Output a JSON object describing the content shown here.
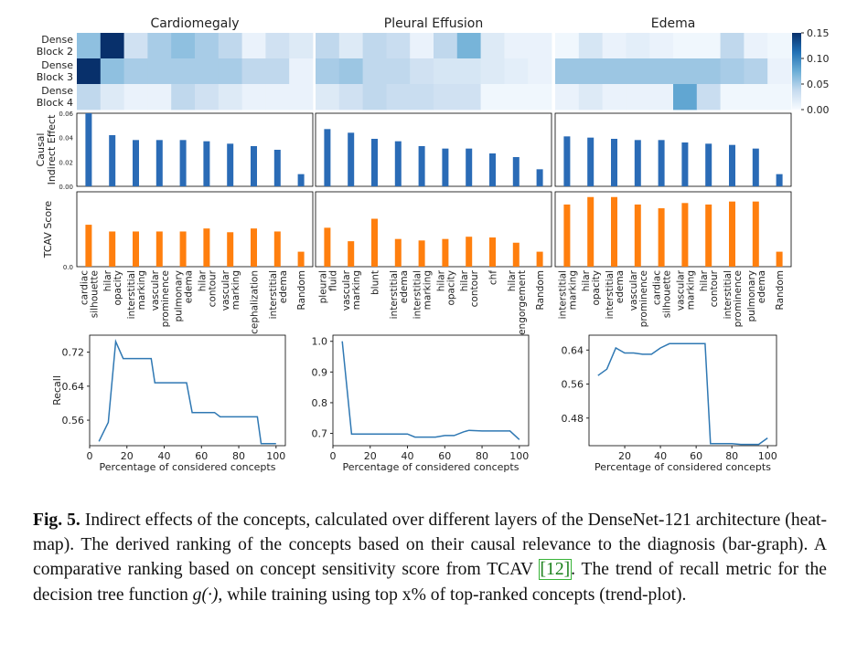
{
  "figure": {
    "panels": [
      {
        "title": "Cardiomegaly",
        "bar_labels": [
          "cardiac silhouette",
          "hilar opacity",
          "interstitial marking",
          "vascular prominence",
          "pulmonary edema",
          "hilar contour",
          "vascular marking",
          "cephalization",
          "interstitial edema",
          "Random"
        ]
      },
      {
        "title": "Pleural Effusion",
        "bar_labels": [
          "pleural fluid",
          "vascular marking",
          "blunt",
          "interstitial edema",
          "interstitial marking",
          "hilar opacity",
          "hilar contour",
          "chf",
          "hilar engorgement",
          "Random"
        ]
      },
      {
        "title": "Edema",
        "bar_labels": [
          "interstitial marking",
          "hilar opacity",
          "interstitial edema",
          "vascular prominence",
          "cardiac silhouette",
          "vascular marking",
          "hilar contour",
          "interstitial prominence",
          "pulmonary edema",
          "Random"
        ]
      }
    ],
    "row_labels": [
      [
        "Dense",
        "Block 2"
      ],
      [
        "Dense",
        "Block 3"
      ],
      [
        "Dense",
        "Block 4"
      ]
    ],
    "colorbar_ticks": [
      "0.15",
      "0.10",
      "0.05",
      "0.00"
    ],
    "causal_ylabel": [
      "Causal",
      "Indirect Effect"
    ],
    "causal_yticks": [
      "0.06",
      "0.04",
      "0.02",
      "0.00"
    ],
    "tcav_ylabel": "TCAV Score",
    "tcav_yticks": [
      "0.0"
    ],
    "recall_ylabel": "Recall",
    "recall_xlabel": "Percentage of considered concepts",
    "colors": {
      "causal_bar": "#2a6bb6",
      "tcav_bar": "#ff7f0e",
      "line": "#2f78b3",
      "heat_high": "#08306b",
      "heat_low": "#f7fbff"
    }
  },
  "chart_data": [
    {
      "type": "heatmap",
      "title": "Cardiomegaly",
      "rows": [
        "Dense Block 2",
        "Dense Block 3",
        "Dense Block 4"
      ],
      "columns": [
        "cardiac silhouette",
        "hilar opacity",
        "interstitial marking",
        "vascular prominence",
        "pulmonary edema",
        "hilar contour",
        "vascular marking",
        "cephalization",
        "interstitial edema",
        "Random"
      ],
      "values": [
        [
          0.06,
          0.15,
          0.03,
          0.05,
          0.06,
          0.05,
          0.04,
          0.01,
          0.03,
          0.02
        ],
        [
          0.15,
          0.06,
          0.05,
          0.05,
          0.05,
          0.05,
          0.05,
          0.04,
          0.04,
          0.01
        ],
        [
          0.04,
          0.02,
          0.01,
          0.01,
          0.04,
          0.03,
          0.02,
          0.01,
          0.01,
          0.01
        ]
      ],
      "vmin": 0.0,
      "vmax": 0.15
    },
    {
      "type": "heatmap",
      "title": "Pleural Effusion",
      "rows": [
        "Dense Block 2",
        "Dense Block 3",
        "Dense Block 4"
      ],
      "columns": [
        "pleural fluid",
        "vascular marking",
        "blunt",
        "interstitial edema",
        "interstitial marking",
        "hilar opacity",
        "hilar contour",
        "chf",
        "hilar engorgement",
        "Random"
      ],
      "values": [
        [
          0.04,
          0.02,
          0.04,
          0.035,
          0.01,
          0.04,
          0.07,
          0.02,
          0.01,
          0.01
        ],
        [
          0.05,
          0.055,
          0.04,
          0.04,
          0.03,
          0.025,
          0.025,
          0.02,
          0.015,
          0.01
        ],
        [
          0.02,
          0.03,
          0.04,
          0.035,
          0.035,
          0.03,
          0.03,
          0.005,
          0.005,
          0.005
        ]
      ],
      "vmin": 0.0,
      "vmax": 0.15
    },
    {
      "type": "heatmap",
      "title": "Edema",
      "rows": [
        "Dense Block 2",
        "Dense Block 3",
        "Dense Block 4"
      ],
      "columns": [
        "interstitial marking",
        "hilar opacity",
        "interstitial edema",
        "vascular prominence",
        "cardiac silhouette",
        "vascular marking",
        "hilar contour",
        "interstitial prominence",
        "pulmonary edema",
        "Random"
      ],
      "values": [
        [
          0.005,
          0.025,
          0.01,
          0.015,
          0.01,
          0.005,
          0.005,
          0.04,
          0.01,
          0.005
        ],
        [
          0.055,
          0.055,
          0.055,
          0.055,
          0.055,
          0.055,
          0.055,
          0.05,
          0.045,
          0.01
        ],
        [
          0.01,
          0.02,
          0.01,
          0.01,
          0.01,
          0.08,
          0.035,
          0.005,
          0.005,
          0.005
        ]
      ],
      "vmin": 0.0,
      "vmax": 0.15
    },
    {
      "type": "bar",
      "title": "Cardiomegaly",
      "ylabel": "Causal Indirect Effect",
      "ylim": [
        0,
        0.06
      ],
      "categories": [
        "cardiac silhouette",
        "hilar opacity",
        "interstitial marking",
        "vascular prominence",
        "pulmonary edema",
        "hilar contour",
        "vascular marking",
        "cephalization",
        "interstitial edema",
        "Random"
      ],
      "values": [
        0.06,
        0.042,
        0.038,
        0.038,
        0.038,
        0.037,
        0.035,
        0.033,
        0.03,
        0.01
      ]
    },
    {
      "type": "bar",
      "title": "Pleural Effusion",
      "ylabel": "Causal Indirect Effect",
      "ylim": [
        0,
        0.06
      ],
      "categories": [
        "pleural fluid",
        "vascular marking",
        "blunt",
        "interstitial edema",
        "interstitial marking",
        "hilar opacity",
        "hilar contour",
        "chf",
        "hilar engorgement",
        "Random"
      ],
      "values": [
        0.047,
        0.044,
        0.039,
        0.037,
        0.033,
        0.031,
        0.031,
        0.027,
        0.024,
        0.014
      ]
    },
    {
      "type": "bar",
      "title": "Edema",
      "ylabel": "Causal Indirect Effect",
      "ylim": [
        0,
        0.06
      ],
      "categories": [
        "interstitial marking",
        "hilar opacity",
        "interstitial edema",
        "vascular prominence",
        "cardiac silhouette",
        "vascular marking",
        "hilar contour",
        "interstitial prominence",
        "pulmonary edema",
        "Random"
      ],
      "values": [
        0.041,
        0.04,
        0.039,
        0.038,
        0.038,
        0.036,
        0.035,
        0.034,
        0.031,
        0.01
      ]
    },
    {
      "type": "bar",
      "title": "Cardiomegaly",
      "ylabel": "TCAV Score",
      "categories": [
        "cardiac silhouette",
        "hilar opacity",
        "interstitial marking",
        "vascular prominence",
        "pulmonary edema",
        "hilar contour",
        "vascular marking",
        "cephalization",
        "interstitial edema",
        "Random"
      ],
      "values": [
        0.56,
        0.47,
        0.47,
        0.47,
        0.47,
        0.51,
        0.46,
        0.51,
        0.47,
        0.2
      ],
      "ymax": 1.0
    },
    {
      "type": "bar",
      "title": "Pleural Effusion",
      "ylabel": "TCAV Score",
      "categories": [
        "pleural fluid",
        "vascular marking",
        "blunt",
        "interstitial edema",
        "interstitial marking",
        "hilar opacity",
        "hilar contour",
        "chf",
        "hilar engorgement",
        "Random"
      ],
      "values": [
        0.52,
        0.34,
        0.64,
        0.37,
        0.35,
        0.37,
        0.4,
        0.39,
        0.32,
        0.2
      ],
      "ymax": 1.0
    },
    {
      "type": "bar",
      "title": "Edema",
      "ylabel": "TCAV Score",
      "categories": [
        "interstitial marking",
        "hilar opacity",
        "interstitial edema",
        "vascular prominence",
        "cardiac silhouette",
        "vascular marking",
        "hilar contour",
        "interstitial prominence",
        "pulmonary edema",
        "Random"
      ],
      "values": [
        0.83,
        0.93,
        0.93,
        0.83,
        0.78,
        0.85,
        0.83,
        0.87,
        0.87,
        0.2
      ],
      "ymax": 1.0
    },
    {
      "type": "line",
      "title": "Cardiomegaly",
      "xlabel": "Percentage of considered concepts",
      "ylabel": "Recall",
      "xlim": [
        0,
        105
      ],
      "ylim": [
        0.5,
        0.76
      ],
      "xticks": [
        0,
        20,
        40,
        60,
        80,
        100
      ],
      "yticks": [
        0.56,
        0.64,
        0.72
      ],
      "x": [
        5,
        10,
        14,
        18,
        27,
        33,
        35,
        44,
        52,
        55,
        60,
        67,
        70,
        80,
        90,
        92,
        100
      ],
      "y": [
        0.51,
        0.555,
        0.745,
        0.705,
        0.705,
        0.705,
        0.648,
        0.648,
        0.648,
        0.578,
        0.578,
        0.578,
        0.568,
        0.568,
        0.568,
        0.505,
        0.505
      ]
    },
    {
      "type": "line",
      "title": "Pleural Effusion",
      "xlabel": "Percentage of considered concepts",
      "ylabel": "Recall",
      "xlim": [
        0,
        105
      ],
      "ylim": [
        0.66,
        1.02
      ],
      "xticks": [
        0,
        20,
        40,
        60,
        80,
        100
      ],
      "yticks": [
        0.7,
        0.8,
        0.9,
        1.0
      ],
      "x": [
        5,
        10,
        14,
        20,
        30,
        40,
        44,
        52,
        55,
        60,
        65,
        70,
        73,
        80,
        90,
        95,
        100
      ],
      "y": [
        1.0,
        0.698,
        0.698,
        0.698,
        0.698,
        0.698,
        0.688,
        0.688,
        0.688,
        0.693,
        0.693,
        0.705,
        0.71,
        0.708,
        0.708,
        0.708,
        0.68
      ]
    },
    {
      "type": "line",
      "title": "Edema",
      "xlabel": "Percentage of considered concepts",
      "ylabel": "Recall",
      "xlim": [
        0,
        105
      ],
      "ylim": [
        0.415,
        0.675
      ],
      "xticks": [
        20,
        40,
        60,
        80,
        100
      ],
      "yticks": [
        0.48,
        0.56,
        0.64
      ],
      "x": [
        5,
        10,
        15,
        20,
        25,
        30,
        35,
        40,
        45,
        50,
        55,
        60,
        65,
        68,
        75,
        80,
        85,
        90,
        95,
        100
      ],
      "y": [
        0.58,
        0.595,
        0.645,
        0.633,
        0.633,
        0.63,
        0.63,
        0.645,
        0.655,
        0.655,
        0.655,
        0.655,
        0.655,
        0.42,
        0.42,
        0.42,
        0.418,
        0.418,
        0.418,
        0.433
      ]
    }
  ],
  "caption": {
    "label": "Fig. 5.",
    "text1": " Indirect effects of the concepts, calculated over different layers of the DenseNet-121 architecture (heat-map). The derived ranking of the concepts based on their causal relevance to the diagnosis (bar-graph). A comparative ranking based on concept sensitivity score from TCAV ",
    "cite": "[12]",
    "text2": ". The trend of recall metric for the decision tree function ",
    "math": "g(·)",
    "text3": ", while training using top x% of top-ranked concepts (trend-plot)."
  }
}
